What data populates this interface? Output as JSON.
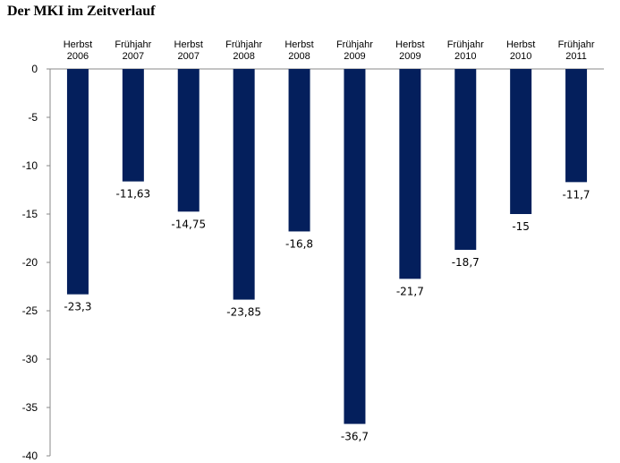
{
  "chart_data": {
    "type": "bar",
    "title": "Der MKI im Zeitverlauf",
    "categories": [
      [
        "Herbst",
        "2006"
      ],
      [
        "Frühjahr",
        "2007"
      ],
      [
        "Herbst",
        "2007"
      ],
      [
        "Frühjahr",
        "2008"
      ],
      [
        "Herbst",
        "2008"
      ],
      [
        "Frühjahr",
        "2009"
      ],
      [
        "Herbst",
        "2009"
      ],
      [
        "Frühjahr",
        "2010"
      ],
      [
        "Herbst",
        "2010"
      ],
      [
        "Frühjahr",
        "2011"
      ]
    ],
    "values": [
      -23.3,
      -11.63,
      -14.75,
      -23.85,
      -16.8,
      -36.7,
      -21.7,
      -18.7,
      -15,
      -11.7
    ],
    "value_labels": [
      "-23,3",
      "-11,63",
      "-14,75",
      "-23,85",
      "-16,8",
      "-36,7",
      "-21,7",
      "-18,7",
      "-15",
      "-11,7"
    ],
    "yticks": [
      "0",
      "-5",
      "-10",
      "-15",
      "-20",
      "-25",
      "-30",
      "-35",
      "-40"
    ],
    "ylim": [
      -40,
      0
    ],
    "xlabel": "",
    "ylabel": "",
    "grid": false,
    "legend": "none",
    "bar_color": "#041f5c",
    "axis_color": "#888888"
  }
}
